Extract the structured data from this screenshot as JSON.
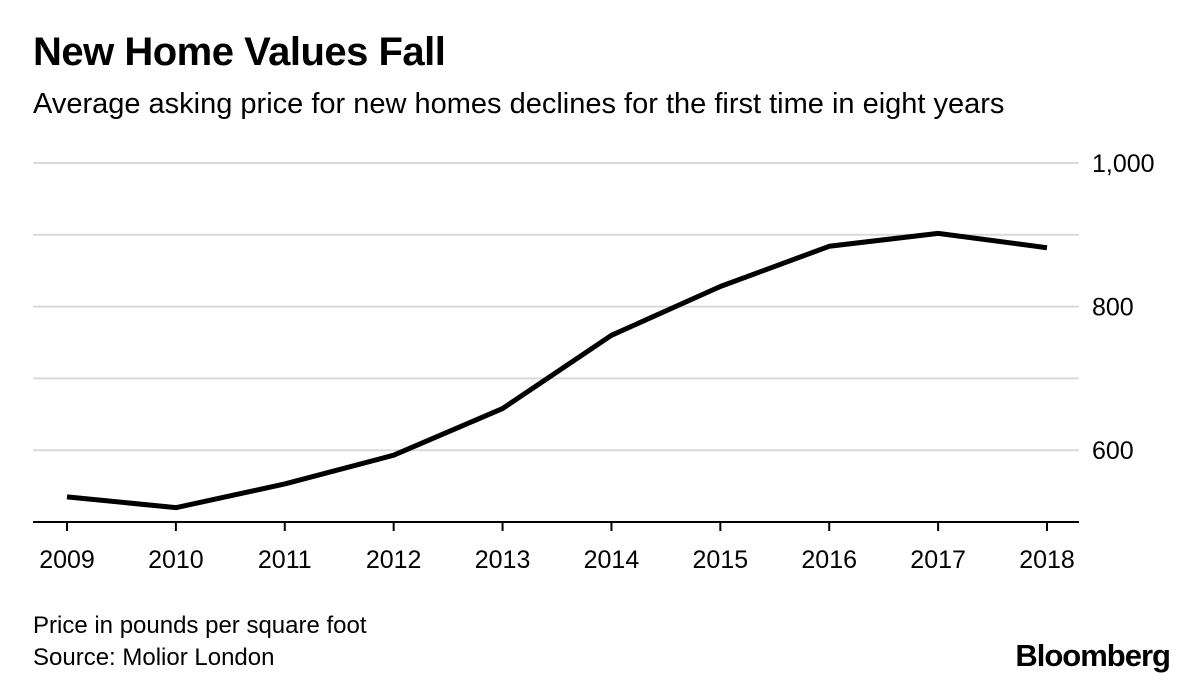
{
  "header": {
    "title": "New Home Values Fall",
    "subtitle": "Average asking price for new homes declines for the first time in eight years"
  },
  "footer": {
    "note": "Price in pounds per square foot",
    "source": "Source: Molior London",
    "logo": "Bloomberg"
  },
  "chart_data": {
    "type": "line",
    "title": "New Home Values Fall",
    "subtitle": "Average asking price for new homes declines for the first time in eight years",
    "x": [
      2009,
      2010,
      2011,
      2012,
      2013,
      2014,
      2015,
      2016,
      2017,
      2018
    ],
    "series": [
      {
        "values": [
          535,
          520,
          553,
          593,
          658,
          760,
          828,
          884,
          902,
          882
        ]
      }
    ],
    "x_tick_labels": [
      "2009",
      "2010",
      "2011",
      "2012",
      "2013",
      "2014",
      "2015",
      "2016",
      "2017",
      "2018"
    ],
    "y_tick_values": [
      600,
      800,
      1000
    ],
    "y_tick_labels": [
      "600",
      "800",
      "1,000"
    ],
    "gridlines": [
      600,
      700,
      800,
      900,
      1000
    ],
    "ylim": [
      500,
      1000
    ],
    "y_axis_side": "right",
    "grid": true,
    "line_color": "#000000",
    "grid_color": "#d9d9d9"
  }
}
